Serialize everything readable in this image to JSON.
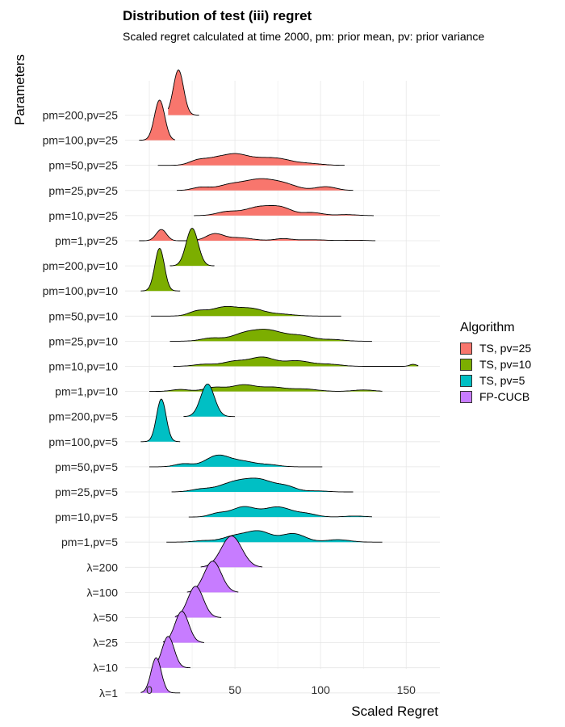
{
  "chart_data": {
    "type": "ridgeline",
    "title": "Distribution of test (iii) regret",
    "subtitle": "Scaled regret calculated at time 2000, pm: prior mean, pv: prior variance",
    "xlabel": "Scaled Regret",
    "ylabel": "Parameters",
    "xlim": [
      -8,
      168
    ],
    "xticks": [
      0,
      50,
      100,
      150
    ],
    "grid": true,
    "legend_position": "right",
    "legend_title": "Algorithm",
    "legend": [
      {
        "name": "TS, pv=25",
        "color": "#F8766D"
      },
      {
        "name": "TS, pv=10",
        "color": "#7CAE00"
      },
      {
        "name": "TS, pv=5",
        "color": "#00BFC4"
      },
      {
        "name": "FP-CUCB",
        "color": "#C77CFF"
      }
    ],
    "rows": [
      {
        "label": "pm=200,pv=25",
        "group": "TS, pv=25",
        "range": [
          11,
          29
        ],
        "peaks": [
          [
            17,
            3,
            1.8
          ]
        ]
      },
      {
        "label": "pm=100,pv=25",
        "group": "TS, pv=25",
        "range": [
          -6,
          15
        ],
        "peaks": [
          [
            6,
            3,
            1.6
          ]
        ]
      },
      {
        "label": "pm=50,pv=25",
        "group": "TS, pv=25",
        "range": [
          5,
          114
        ],
        "peaks": [
          [
            28,
            5,
            0.18
          ],
          [
            38,
            6,
            0.22
          ],
          [
            50,
            7,
            0.4
          ],
          [
            65,
            8,
            0.24
          ],
          [
            77,
            7,
            0.18
          ],
          [
            92,
            8,
            0.08
          ]
        ]
      },
      {
        "label": "pm=25,pv=25",
        "group": "TS, pv=25",
        "range": [
          16,
          119
        ],
        "peaks": [
          [
            30,
            5,
            0.12
          ],
          [
            48,
            8,
            0.24
          ],
          [
            64,
            8,
            0.38
          ],
          [
            78,
            8,
            0.26
          ],
          [
            103,
            6,
            0.15
          ]
        ]
      },
      {
        "label": "pm=10,pv=25",
        "group": "TS, pv=25",
        "range": [
          26,
          131
        ],
        "peaks": [
          [
            45,
            6,
            0.14
          ],
          [
            65,
            9,
            0.36
          ],
          [
            78,
            6,
            0.22
          ],
          [
            95,
            6,
            0.12
          ],
          [
            115,
            6,
            0.04
          ]
        ]
      },
      {
        "label": "pm=1,pv=25",
        "group": "TS, pv=25",
        "range": [
          -6,
          132
        ],
        "peaks": [
          [
            7,
            3,
            0.45
          ],
          [
            38,
            5,
            0.26
          ],
          [
            52,
            8,
            0.12
          ],
          [
            78,
            5,
            0.08
          ],
          [
            95,
            8,
            0.04
          ],
          [
            120,
            6,
            0.02
          ]
        ]
      },
      {
        "label": "pm=200,pv=10",
        "group": "TS, pv=10",
        "range": [
          12,
          38
        ],
        "peaks": [
          [
            25,
            3.5,
            1.5
          ]
        ]
      },
      {
        "label": "pm=100,pv=10",
        "group": "TS, pv=10",
        "range": [
          -5,
          18
        ],
        "peaks": [
          [
            6,
            2.8,
            1.7
          ]
        ]
      },
      {
        "label": "pm=50,pv=10",
        "group": "TS, pv=10",
        "range": [
          1,
          112
        ],
        "peaks": [
          [
            28,
            5,
            0.18
          ],
          [
            44,
            8,
            0.36
          ],
          [
            60,
            7,
            0.26
          ],
          [
            76,
            8,
            0.08
          ]
        ]
      },
      {
        "label": "pm=25,pv=10",
        "group": "TS, pv=10",
        "range": [
          12,
          130
        ],
        "peaks": [
          [
            36,
            6,
            0.12
          ],
          [
            56,
            8,
            0.3
          ],
          [
            70,
            8,
            0.38
          ],
          [
            88,
            8,
            0.22
          ],
          [
            108,
            6,
            0.06
          ]
        ]
      },
      {
        "label": "pm=10,pv=10",
        "group": "TS, pv=10",
        "range": [
          14,
          157
        ],
        "peaks": [
          [
            32,
            6,
            0.08
          ],
          [
            50,
            7,
            0.2
          ],
          [
            66,
            7,
            0.35
          ],
          [
            86,
            8,
            0.22
          ],
          [
            105,
            7,
            0.08
          ],
          [
            154,
            2,
            0.08
          ]
        ]
      },
      {
        "label": "pm=1,pv=10",
        "group": "TS, pv=10",
        "range": [
          0,
          136
        ],
        "peaks": [
          [
            18,
            5,
            0.08
          ],
          [
            38,
            6,
            0.16
          ],
          [
            55,
            7,
            0.26
          ],
          [
            72,
            7,
            0.16
          ],
          [
            90,
            8,
            0.1
          ],
          [
            125,
            6,
            0.06
          ]
        ]
      },
      {
        "label": "pm=200,pv=5",
        "group": "TS, pv=5",
        "range": [
          20,
          50
        ],
        "peaks": [
          [
            34,
            4,
            1.3
          ]
        ]
      },
      {
        "label": "pm=100,pv=5",
        "group": "TS, pv=5",
        "range": [
          -5,
          18
        ],
        "peaks": [
          [
            7,
            2.8,
            1.7
          ]
        ]
      },
      {
        "label": "pm=50,pv=5",
        "group": "TS, pv=5",
        "range": [
          0,
          101
        ],
        "peaks": [
          [
            20,
            5,
            0.12
          ],
          [
            40,
            7,
            0.45
          ],
          [
            55,
            7,
            0.2
          ],
          [
            70,
            6,
            0.08
          ]
        ]
      },
      {
        "label": "pm=25,pv=5",
        "group": "TS, pv=5",
        "range": [
          13,
          119
        ],
        "peaks": [
          [
            30,
            6,
            0.1
          ],
          [
            50,
            9,
            0.38
          ],
          [
            65,
            8,
            0.42
          ],
          [
            80,
            6,
            0.2
          ],
          [
            98,
            6,
            0.04
          ]
        ]
      },
      {
        "label": "pm=10,pv=5",
        "group": "TS, pv=5",
        "range": [
          23,
          130
        ],
        "peaks": [
          [
            40,
            5,
            0.14
          ],
          [
            55,
            7,
            0.4
          ],
          [
            75,
            8,
            0.4
          ],
          [
            92,
            6,
            0.12
          ],
          [
            120,
            6,
            0.04
          ]
        ]
      },
      {
        "label": "pm=1,pv=5",
        "group": "TS, pv=5",
        "range": [
          10,
          136
        ],
        "peaks": [
          [
            32,
            6,
            0.06
          ],
          [
            50,
            7,
            0.24
          ],
          [
            64,
            7,
            0.42
          ],
          [
            84,
            7,
            0.34
          ],
          [
            110,
            7,
            0.1
          ]
        ]
      },
      {
        "label": "λ=200",
        "group": "FP-CUCB",
        "range": [
          30,
          66
        ],
        "peaks": [
          [
            48,
            6,
            1.25
          ]
        ]
      },
      {
        "label": "λ=100",
        "group": "FP-CUCB",
        "range": [
          22,
          52
        ],
        "peaks": [
          [
            37,
            5,
            1.25
          ]
        ]
      },
      {
        "label": "λ=50",
        "group": "FP-CUCB",
        "range": [
          15,
          42
        ],
        "peaks": [
          [
            27,
            4.5,
            1.25
          ]
        ]
      },
      {
        "label": "λ=25",
        "group": "FP-CUCB",
        "range": [
          8,
          32
        ],
        "peaks": [
          [
            19,
            4,
            1.25
          ]
        ]
      },
      {
        "label": "λ=10",
        "group": "FP-CUCB",
        "range": [
          3,
          24
        ],
        "peaks": [
          [
            11,
            3.5,
            1.25
          ]
        ]
      },
      {
        "label": "λ=1",
        "group": "FP-CUCB",
        "range": [
          -5,
          18
        ],
        "peaks": [
          [
            4,
            3,
            1.4
          ]
        ]
      }
    ]
  }
}
